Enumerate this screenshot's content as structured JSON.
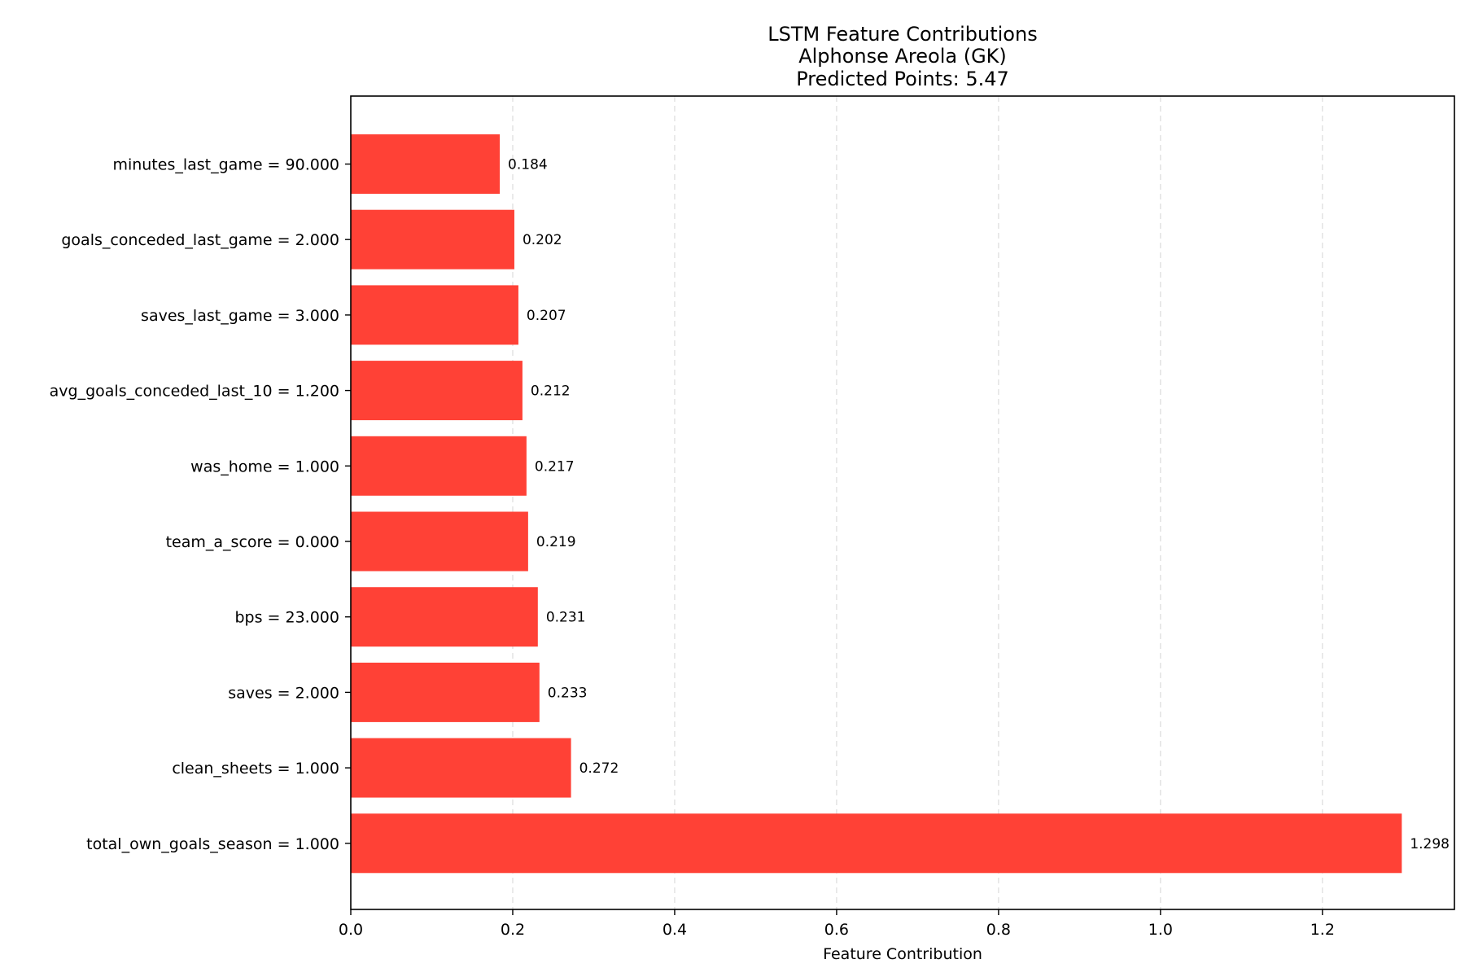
{
  "chart_data": {
    "type": "bar",
    "orientation": "horizontal",
    "title_lines": [
      "LSTM Feature Contributions",
      "Alphonse Areola (GK)",
      "Predicted Points: 5.47"
    ],
    "xlabel": "Feature Contribution",
    "ylabel": "",
    "xlim": [
      0,
      1.363
    ],
    "xticks": [
      0.0,
      0.2,
      0.4,
      0.6,
      0.8,
      1.0,
      1.2
    ],
    "xtick_labels": [
      "0.0",
      "0.2",
      "0.4",
      "0.6",
      "0.8",
      "1.0",
      "1.2"
    ],
    "grid": "x-axis dashed",
    "bar_color": "#ff4136",
    "categories": [
      "minutes_last_game = 90.000",
      "goals_conceded_last_game = 2.000",
      "saves_last_game = 3.000",
      "avg_goals_conceded_last_10 = 1.200",
      "was_home = 1.000",
      "team_a_score = 0.000",
      "bps = 23.000",
      "saves = 2.000",
      "clean_sheets = 1.000",
      "total_own_goals_season = 1.000"
    ],
    "values": [
      0.184,
      0.202,
      0.207,
      0.212,
      0.217,
      0.219,
      0.231,
      0.233,
      0.272,
      1.298
    ],
    "value_labels": [
      "0.184",
      "0.202",
      "0.207",
      "0.212",
      "0.217",
      "0.219",
      "0.231",
      "0.233",
      "0.272",
      "1.298"
    ]
  }
}
